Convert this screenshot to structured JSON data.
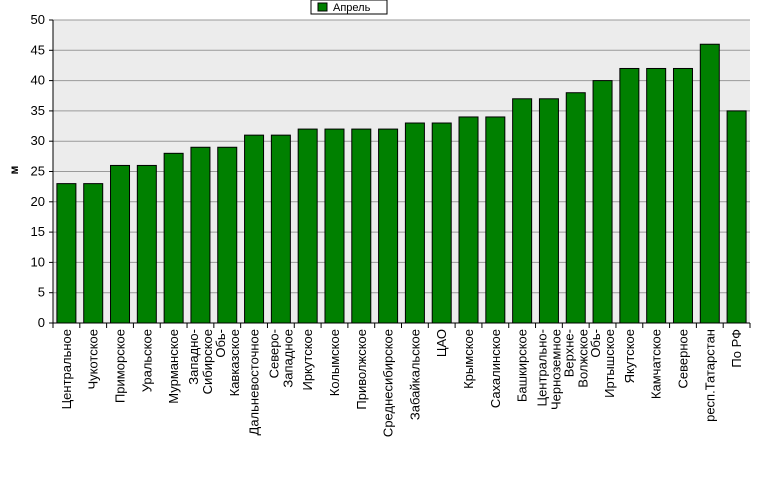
{
  "chart_data": {
    "type": "bar",
    "title": "",
    "xlabel": "",
    "ylabel": "м",
    "ylim": [
      0,
      50
    ],
    "yticks": [
      0,
      5,
      10,
      15,
      20,
      25,
      30,
      35,
      40,
      45,
      50
    ],
    "grid": true,
    "legend_position": "top-center",
    "categories": [
      "Центральное",
      "Чукотское",
      "Приморское",
      "Уральское",
      "Мурманское",
      "Западно-Сибирское",
      "Обь-Кавказское",
      "Дальневосточное",
      "Северо-Западное",
      "Иркутское",
      "Колымское",
      "Приволжское",
      "Среднесибирское",
      "Забайкальское",
      "ЦАО",
      "Крымское",
      "Сахалинское",
      "Башкирское",
      "Центрально-Черноземное",
      "Верхне-Волжское",
      "Обь-Иртышское",
      "Якутское",
      "Камчатское",
      "Северное",
      "респ.Татарстан",
      "По РФ"
    ],
    "category_lines": [
      [
        "Центральное"
      ],
      [
        "Чукотское"
      ],
      [
        "Приморское"
      ],
      [
        "Уральское"
      ],
      [
        "Мурманское"
      ],
      [
        "Западно-",
        "Сибирское"
      ],
      [
        "Обь-",
        "Кавказское"
      ],
      [
        "Дальневосточное"
      ],
      [
        "Северо-",
        "Западное"
      ],
      [
        "Иркутское"
      ],
      [
        "Колымское"
      ],
      [
        "Приволжское"
      ],
      [
        "Среднесибирское"
      ],
      [
        "Забайкальское"
      ],
      [
        "ЦАО"
      ],
      [
        "Крымское"
      ],
      [
        "Сахалинское"
      ],
      [
        "Башкирское"
      ],
      [
        "Центрально-",
        "Черноземное"
      ],
      [
        "Верхне-",
        "Волжское"
      ],
      [
        "Обь-",
        "Иртышское"
      ],
      [
        "Якутское"
      ],
      [
        "Камчатское"
      ],
      [
        "Северное"
      ],
      [
        "респ.Татарстан"
      ],
      [
        "По РФ"
      ]
    ],
    "series": [
      {
        "name": "Апрель",
        "color": "#008000",
        "values": [
          23,
          23,
          26,
          26,
          28,
          29,
          29,
          31,
          31,
          32,
          32,
          32,
          32,
          33,
          33,
          34,
          34,
          37,
          37,
          38,
          40,
          42,
          42,
          42,
          46,
          35
        ]
      }
    ]
  }
}
